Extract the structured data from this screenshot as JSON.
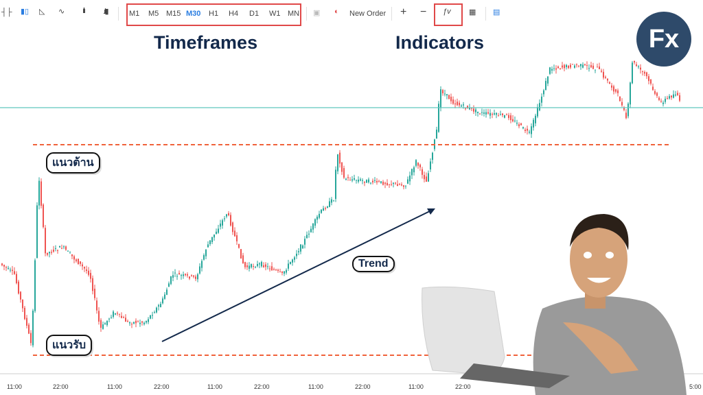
{
  "toolbar": {
    "timeframes": [
      "M1",
      "M5",
      "M15",
      "M30",
      "H1",
      "H4",
      "D1",
      "W1",
      "MN"
    ],
    "active_timeframe": "M30",
    "new_order": "New Order",
    "zoom_in": "+",
    "zoom_out": "−"
  },
  "annotations": {
    "timeframes_title": "Timeframes",
    "indicators_title": "Indicators",
    "resistance": "แนวต้าน",
    "support": "แนวรับ",
    "trend": "Trend"
  },
  "x_axis": {
    "ticks": [
      "11:00",
      "22:00",
      "11:00",
      "22:00",
      "11:00",
      "22:00",
      "11:00",
      "22:00",
      "11:00",
      "22:00",
      "5:00"
    ]
  },
  "logo": {
    "text": "Fx"
  },
  "colors": {
    "up": "#26a69a",
    "down": "#ef5350",
    "accent": "#2a7de1",
    "highlight": "#e04848",
    "level": "#f0623a",
    "brand": "#2e4a6a"
  }
}
